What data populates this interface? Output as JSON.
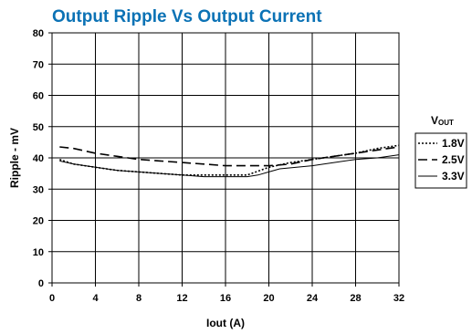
{
  "chart_data": {
    "type": "line",
    "title": "Output Ripple Vs Output Current",
    "xlabel": "Iout  (A)",
    "ylabel": "Ripple - mV",
    "xlim": [
      0,
      32
    ],
    "ylim": [
      0,
      80
    ],
    "x_ticks": [
      "0",
      "4",
      "8",
      "12",
      "16",
      "20",
      "24",
      "28",
      "32"
    ],
    "y_ticks": [
      "0",
      "10",
      "20",
      "30",
      "40",
      "50",
      "60",
      "70",
      "80"
    ],
    "grid": true,
    "legend": {
      "title_main": "V",
      "title_sub": "OUT",
      "position": "right"
    },
    "series": [
      {
        "name": "1.8V",
        "style": "dotted",
        "x": [
          0.7,
          2,
          4,
          6,
          8,
          10,
          12,
          14,
          16,
          18,
          20,
          22,
          24,
          26,
          28,
          30,
          32
        ],
        "y": [
          39.5,
          38,
          37,
          36,
          35.5,
          35,
          34.5,
          34.5,
          34.5,
          34.5,
          37,
          38.5,
          39.5,
          40.5,
          41.5,
          43,
          44
        ]
      },
      {
        "name": "2.5V",
        "style": "dashed",
        "x": [
          0.7,
          2,
          4,
          6,
          8,
          10,
          12,
          14,
          16,
          18,
          20,
          22,
          24,
          26,
          28,
          30,
          32
        ],
        "y": [
          43.5,
          43,
          41.5,
          40.5,
          39.5,
          39,
          38.5,
          38,
          37.5,
          37.5,
          37.5,
          38,
          39.5,
          40.5,
          41.5,
          42.5,
          43.5
        ]
      },
      {
        "name": "3.3V",
        "style": "solid",
        "x": [
          0.7,
          2,
          4,
          6,
          8,
          10,
          12,
          14,
          16,
          18,
          19,
          20,
          21,
          24,
          26,
          28,
          30,
          32
        ],
        "y": [
          39,
          38,
          37,
          36,
          35.5,
          35,
          34.5,
          34,
          34,
          34,
          34.5,
          35.5,
          36.5,
          37.5,
          38.5,
          39.5,
          40,
          41
        ]
      }
    ]
  }
}
